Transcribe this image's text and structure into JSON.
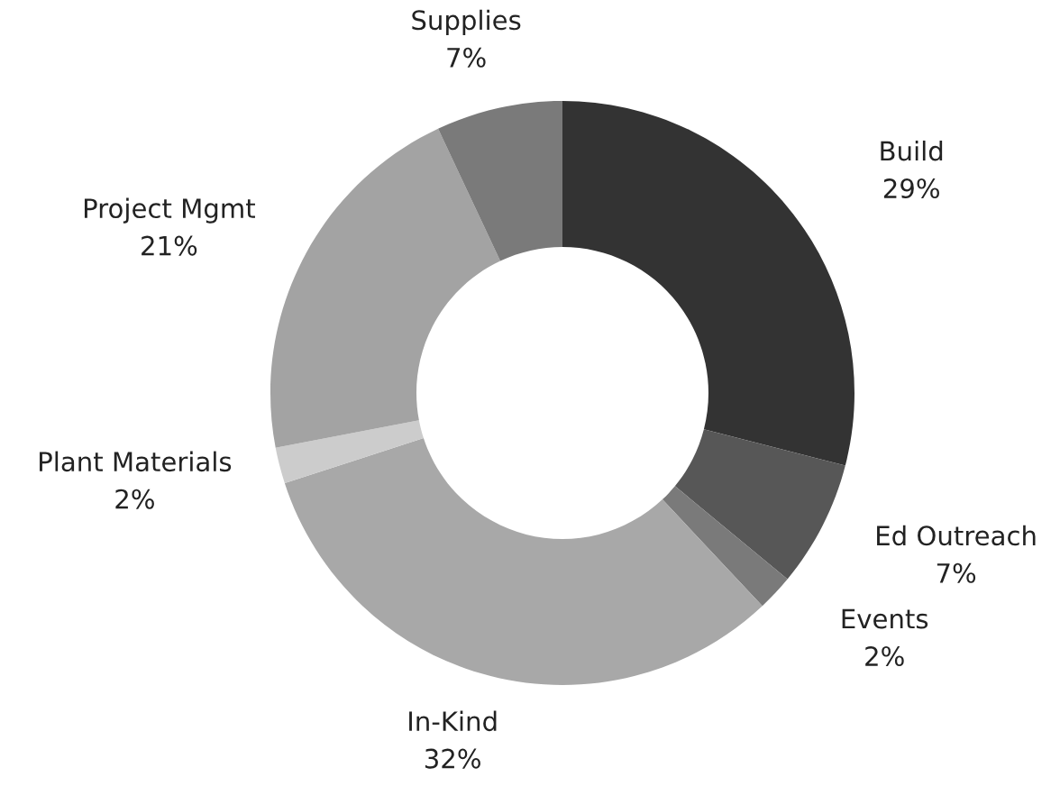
{
  "chart_data": {
    "type": "donut",
    "categories": [
      "Build",
      "Ed Outreach",
      "Events",
      "In-Kind",
      "Plant Materials",
      "Project Mgmt",
      "Supplies"
    ],
    "values": [
      29,
      7,
      2,
      32,
      2,
      21,
      7
    ],
    "value_labels": [
      "29%",
      "7%",
      "2%",
      "32%",
      "2%",
      "21%",
      "7%"
    ],
    "colors": [
      "#333333",
      "#575757",
      "#7a7a7a",
      "#a8a8a8",
      "#cccccc",
      "#a3a3a3",
      "#7a7a7a"
    ],
    "legend": false
  }
}
